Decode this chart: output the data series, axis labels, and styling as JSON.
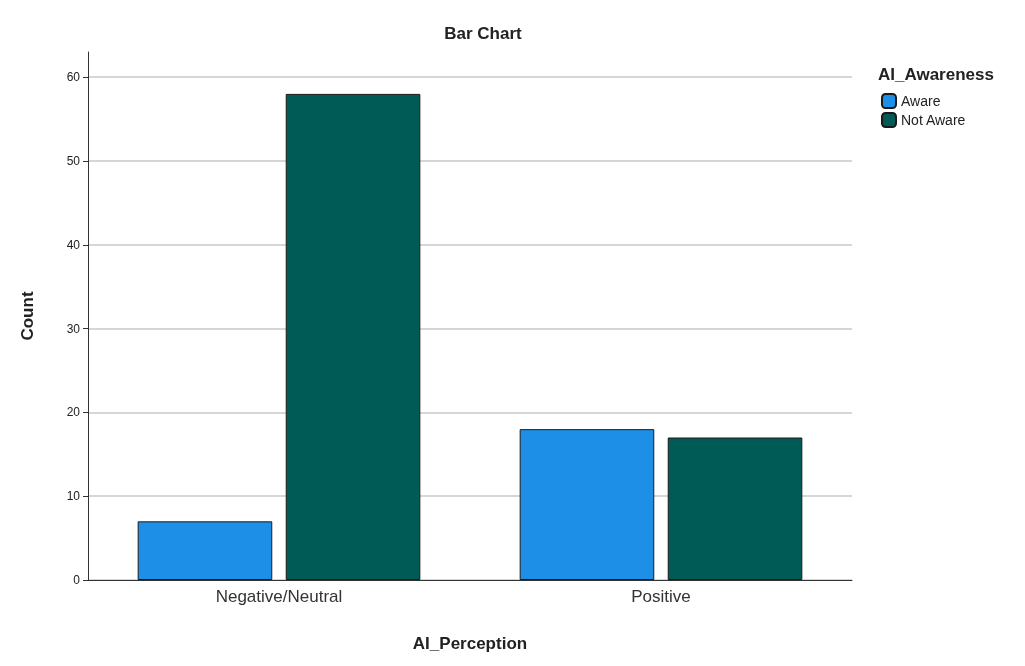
{
  "chart_data": {
    "type": "bar",
    "title": "Bar Chart",
    "xlabel": "AI_Perception",
    "ylabel": "Count",
    "legend_title": "AI_Awareness",
    "categories": [
      "Negative/Neutral",
      "Positive"
    ],
    "series": [
      {
        "name": "Aware",
        "color": "#1e8fe6",
        "values": [
          7,
          18
        ]
      },
      {
        "name": "Not Aware",
        "color": "#005a55",
        "values": [
          58,
          17
        ]
      }
    ],
    "ylim": [
      0,
      63
    ],
    "yticks": [
      0,
      10,
      20,
      30,
      40,
      50,
      60
    ],
    "grid": "y",
    "legend": "top right"
  }
}
